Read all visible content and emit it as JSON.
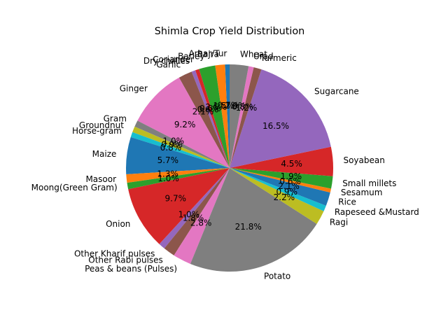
{
  "chart_data": {
    "type": "pie",
    "title": "Shimla Crop Yield Distribution",
    "start_angle_deg": 90,
    "direction": "counterclockwise",
    "slices": [
      {
        "label": "Arhar/Tur",
        "value": 0.7,
        "pct_label": "0.7%",
        "color": "#1f77b4"
      },
      {
        "label": "Bajra",
        "value": 1.5,
        "pct_label": "1.5%",
        "color": "#ff7f0e"
      },
      {
        "label": "Barley",
        "value": 2.5,
        "pct_label": "2.5%",
        "color": "#2ca02c"
      },
      {
        "label": "Coriander",
        "value": 0.6,
        "pct_label": "0.6%",
        "color": "#d62728"
      },
      {
        "label": "Dry chillies",
        "value": 0.6,
        "pct_label": "0.6%",
        "color": "#9467bd"
      },
      {
        "label": "Garlic",
        "value": 2.1,
        "pct_label": "2.1%",
        "color": "#8c564b"
      },
      {
        "label": "Ginger",
        "value": 9.2,
        "pct_label": "9.2%",
        "color": "#e377c2"
      },
      {
        "label": "Gram",
        "value": 1.0,
        "pct_label": "1.0%",
        "color": "#7f7f7f"
      },
      {
        "label": "Groundnut",
        "value": 0.9,
        "pct_label": "0.9%",
        "color": "#bcbd22"
      },
      {
        "label": "Horse-gram",
        "value": 0.8,
        "pct_label": "0.8%",
        "color": "#17becf"
      },
      {
        "label": "Maize",
        "value": 5.7,
        "pct_label": "5.7%",
        "color": "#1f77b4"
      },
      {
        "label": "Masoor",
        "value": 1.3,
        "pct_label": "1.3%",
        "color": "#ff7f0e"
      },
      {
        "label": "Moong(Green Gram)",
        "value": 1.0,
        "pct_label": "1.0%",
        "color": "#2ca02c"
      },
      {
        "label": "Onion",
        "value": 9.7,
        "pct_label": "9.7%",
        "color": "#d62728"
      },
      {
        "label": "Other Kharif pulses",
        "value": 1.0,
        "pct_label": "1.0%",
        "color": "#9467bd"
      },
      {
        "label": "Other Rabi pulses",
        "value": 1.8,
        "pct_label": "1.8%",
        "color": "#8c564b"
      },
      {
        "label": "Peas & beans (Pulses)",
        "value": 2.8,
        "pct_label": "2.8%",
        "color": "#e377c2"
      },
      {
        "label": "Potato",
        "value": 21.8,
        "pct_label": "21.8%",
        "color": "#7f7f7f"
      },
      {
        "label": "Ragi",
        "value": 2.2,
        "pct_label": "2.2%",
        "color": "#bcbd22"
      },
      {
        "label": "Rapeseed &Mustard",
        "value": 0.9,
        "pct_label": "0.9%",
        "color": "#17becf"
      },
      {
        "label": "Rice",
        "value": 2.1,
        "pct_label": "2.1%",
        "color": "#1f77b4"
      },
      {
        "label": "Sesamum",
        "value": 0.6,
        "pct_label": "0.6%",
        "color": "#ff7f0e"
      },
      {
        "label": "Small millets",
        "value": 1.9,
        "pct_label": "1.9%",
        "color": "#2ca02c"
      },
      {
        "label": "Soyabean",
        "value": 4.5,
        "pct_label": "4.5%",
        "color": "#d62728"
      },
      {
        "label": "Sugarcane",
        "value": 16.5,
        "pct_label": "16.5%",
        "color": "#9467bd"
      },
      {
        "label": "Turmeric",
        "value": 1.2,
        "pct_label": "1.2%",
        "color": "#8c564b"
      },
      {
        "label": "Urad",
        "value": 0.8,
        "pct_label": "0.8%",
        "color": "#e377c2"
      },
      {
        "label": "Wheat",
        "value": 2.9,
        "pct_label": "2.9%",
        "color": "#7f7f7f"
      }
    ]
  }
}
